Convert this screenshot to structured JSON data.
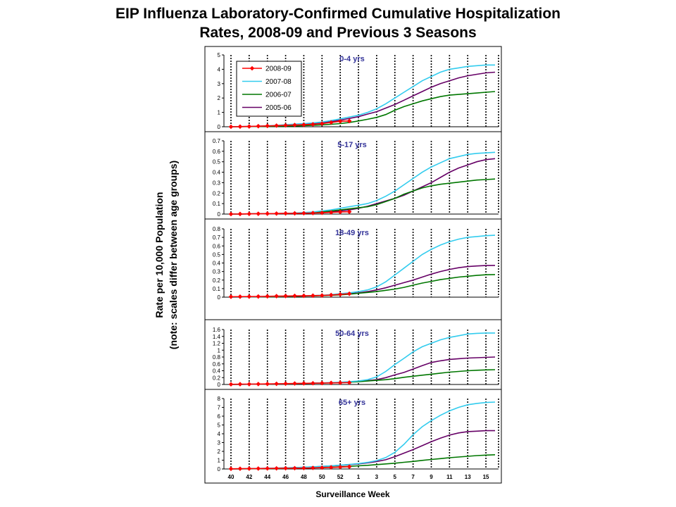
{
  "page": {
    "title_line1": "EIP Influenza Laboratory-Confirmed Cumulative Hospitalization",
    "title_line2": "Rates, 2008-09 and Previous 3 Seasons",
    "ylabel_line1": "Rate per 10,000 Population",
    "ylabel_line2": "(note: scales differ between age groups)",
    "xlabel": "Surveillance Week"
  },
  "colors": {
    "2008-09": "#ff0000",
    "2007-08": "#33ccee",
    "2006-07": "#007700",
    "2005-06": "#660066"
  },
  "chart_data": {
    "type": "line",
    "x_weeks": [
      40,
      41,
      42,
      43,
      44,
      45,
      46,
      47,
      48,
      49,
      50,
      51,
      52,
      53,
      1,
      2,
      3,
      4,
      5,
      6,
      7,
      8,
      9,
      10,
      11,
      12,
      13,
      14,
      15,
      16
    ],
    "x_tick_labels": [
      "40",
      "42",
      "44",
      "46",
      "48",
      "50",
      "52",
      "1",
      "3",
      "5",
      "7",
      "9",
      "11",
      "13",
      "15"
    ],
    "grid": "dotted vertical lines every two weeks",
    "legend_position": "top-left of first panel",
    "legend_entries": [
      "2008-09",
      "2007-08",
      "2006-07",
      "2005-06"
    ],
    "panels": [
      {
        "title": "0-4 yrs",
        "ylim": [
          0,
          5
        ],
        "yticks": [
          "0",
          "1",
          "2",
          "3",
          "4",
          "5"
        ],
        "series": [
          {
            "name": "2008-09",
            "marker": "diamond",
            "values": [
              0,
              0.01,
              0.02,
              0.04,
              0.06,
              0.08,
              0.1,
              0.12,
              0.14,
              0.17,
              0.22,
              0.3,
              0.38,
              0.4
            ]
          },
          {
            "name": "2007-08",
            "values": [
              0,
              0.01,
              0.02,
              0.04,
              0.07,
              0.1,
              0.14,
              0.18,
              0.22,
              0.27,
              0.33,
              0.43,
              0.55,
              0.68,
              0.8,
              1.0,
              1.25,
              1.6,
              2.0,
              2.4,
              2.8,
              3.2,
              3.5,
              3.8,
              4.0,
              4.1,
              4.2,
              4.25,
              4.3,
              4.3
            ]
          },
          {
            "name": "2006-07",
            "values": [
              0,
              0.01,
              0.01,
              0.02,
              0.03,
              0.04,
              0.05,
              0.06,
              0.08,
              0.1,
              0.13,
              0.17,
              0.22,
              0.3,
              0.4,
              0.52,
              0.65,
              0.85,
              1.15,
              1.4,
              1.6,
              1.8,
              1.95,
              2.1,
              2.2,
              2.25,
              2.3,
              2.35,
              2.4,
              2.45
            ]
          },
          {
            "name": "2005-06",
            "values": [
              0,
              0.01,
              0.02,
              0.03,
              0.05,
              0.07,
              0.1,
              0.13,
              0.17,
              0.22,
              0.28,
              0.36,
              0.46,
              0.58,
              0.7,
              0.88,
              1.05,
              1.3,
              1.55,
              1.85,
              2.15,
              2.45,
              2.75,
              3.0,
              3.2,
              3.4,
              3.55,
              3.65,
              3.75,
              3.8
            ]
          }
        ]
      },
      {
        "title": "5-17 yrs",
        "ylim": [
          0,
          0.7
        ],
        "yticks": [
          "0",
          "0.1",
          "0.2",
          "0.3",
          "0.4",
          "0.5",
          "0.6",
          "0.7"
        ],
        "series": [
          {
            "name": "2008-09",
            "marker": "diamond",
            "values": [
              0,
              0.001,
              0.002,
              0.003,
              0.004,
              0.005,
              0.006,
              0.007,
              0.008,
              0.01,
              0.012,
              0.016,
              0.02,
              0.022
            ]
          },
          {
            "name": "2007-08",
            "values": [
              0,
              0.001,
              0.002,
              0.003,
              0.004,
              0.005,
              0.007,
              0.01,
              0.015,
              0.02,
              0.03,
              0.04,
              0.055,
              0.07,
              0.085,
              0.1,
              0.13,
              0.17,
              0.22,
              0.28,
              0.34,
              0.4,
              0.45,
              0.49,
              0.53,
              0.55,
              0.57,
              0.58,
              0.585,
              0.59
            ]
          },
          {
            "name": "2006-07",
            "values": [
              0,
              0.001,
              0.002,
              0.003,
              0.004,
              0.005,
              0.007,
              0.009,
              0.012,
              0.016,
              0.022,
              0.03,
              0.04,
              0.05,
              0.06,
              0.07,
              0.09,
              0.12,
              0.15,
              0.19,
              0.22,
              0.25,
              0.27,
              0.285,
              0.295,
              0.305,
              0.315,
              0.325,
              0.33,
              0.335
            ]
          },
          {
            "name": "2005-06",
            "values": [
              0,
              0.001,
              0.002,
              0.003,
              0.004,
              0.005,
              0.006,
              0.008,
              0.01,
              0.013,
              0.017,
              0.022,
              0.03,
              0.04,
              0.055,
              0.075,
              0.1,
              0.125,
              0.15,
              0.18,
              0.22,
              0.26,
              0.3,
              0.35,
              0.4,
              0.44,
              0.47,
              0.5,
              0.52,
              0.53
            ]
          }
        ]
      },
      {
        "title": "18-49 yrs",
        "ylim": [
          0,
          0.8
        ],
        "yticks": [
          "0",
          "0.1",
          "0.2",
          "0.3",
          "0.4",
          "0.5",
          "0.6",
          "0.7",
          "0.8"
        ],
        "series": [
          {
            "name": "2008-09",
            "marker": "diamond",
            "values": [
              0.005,
              0.006,
              0.007,
              0.008,
              0.01,
              0.012,
              0.013,
              0.015,
              0.016,
              0.018,
              0.02,
              0.025,
              0.032,
              0.04
            ]
          },
          {
            "name": "2007-08",
            "values": [
              0,
              0.002,
              0.004,
              0.006,
              0.008,
              0.01,
              0.012,
              0.014,
              0.016,
              0.018,
              0.022,
              0.03,
              0.04,
              0.05,
              0.065,
              0.085,
              0.12,
              0.18,
              0.26,
              0.34,
              0.42,
              0.5,
              0.56,
              0.61,
              0.65,
              0.68,
              0.7,
              0.71,
              0.72,
              0.725
            ]
          },
          {
            "name": "2006-07",
            "values": [
              0,
              0.002,
              0.003,
              0.004,
              0.005,
              0.006,
              0.008,
              0.01,
              0.012,
              0.015,
              0.018,
              0.022,
              0.027,
              0.035,
              0.045,
              0.055,
              0.065,
              0.08,
              0.095,
              0.115,
              0.14,
              0.165,
              0.185,
              0.205,
              0.22,
              0.235,
              0.245,
              0.255,
              0.262,
              0.265
            ]
          },
          {
            "name": "2005-06",
            "values": [
              0,
              0.002,
              0.004,
              0.005,
              0.006,
              0.008,
              0.01,
              0.012,
              0.014,
              0.017,
              0.02,
              0.025,
              0.032,
              0.04,
              0.05,
              0.065,
              0.085,
              0.11,
              0.14,
              0.17,
              0.2,
              0.235,
              0.27,
              0.3,
              0.325,
              0.345,
              0.358,
              0.365,
              0.37,
              0.372
            ]
          }
        ]
      },
      {
        "title": "50-64 yrs",
        "ylim": [
          0,
          1.6
        ],
        "yticks": [
          "0",
          "0.2",
          "0.4",
          "0.6",
          "0.8",
          "1",
          "1.2",
          "1.4",
          "1.6"
        ],
        "series": [
          {
            "name": "2008-09",
            "marker": "diamond",
            "values": [
              0.005,
              0.008,
              0.01,
              0.013,
              0.016,
              0.02,
              0.024,
              0.028,
              0.032,
              0.036,
              0.04,
              0.045,
              0.05,
              0.055
            ]
          },
          {
            "name": "2007-08",
            "values": [
              0,
              0.003,
              0.006,
              0.01,
              0.014,
              0.018,
              0.022,
              0.027,
              0.032,
              0.038,
              0.045,
              0.055,
              0.065,
              0.08,
              0.1,
              0.14,
              0.22,
              0.38,
              0.58,
              0.76,
              0.95,
              1.1,
              1.2,
              1.3,
              1.37,
              1.42,
              1.47,
              1.49,
              1.5,
              1.5
            ]
          },
          {
            "name": "2006-07",
            "values": [
              0,
              0.003,
              0.006,
              0.009,
              0.012,
              0.015,
              0.019,
              0.023,
              0.028,
              0.034,
              0.04,
              0.048,
              0.057,
              0.068,
              0.08,
              0.1,
              0.12,
              0.14,
              0.17,
              0.21,
              0.24,
              0.27,
              0.3,
              0.33,
              0.36,
              0.38,
              0.4,
              0.415,
              0.425,
              0.43
            ]
          },
          {
            "name": "2005-06",
            "values": [
              0,
              0.003,
              0.006,
              0.009,
              0.012,
              0.016,
              0.02,
              0.025,
              0.03,
              0.036,
              0.043,
              0.052,
              0.062,
              0.075,
              0.09,
              0.11,
              0.14,
              0.2,
              0.28,
              0.35,
              0.45,
              0.55,
              0.64,
              0.69,
              0.73,
              0.75,
              0.77,
              0.78,
              0.79,
              0.8
            ]
          }
        ]
      },
      {
        "title": "65+ yrs",
        "ylim": [
          0,
          8
        ],
        "yticks": [
          "0",
          "1",
          "2",
          "3",
          "4",
          "5",
          "6",
          "7",
          "8"
        ],
        "series": [
          {
            "name": "2008-09",
            "marker": "diamond",
            "values": [
              0.02,
              0.03,
              0.04,
              0.05,
              0.06,
              0.07,
              0.08,
              0.09,
              0.1,
              0.12,
              0.15,
              0.18,
              0.22,
              0.26
            ]
          },
          {
            "name": "2007-08",
            "values": [
              0,
              0.02,
              0.04,
              0.06,
              0.08,
              0.1,
              0.13,
              0.16,
              0.2,
              0.25,
              0.3,
              0.36,
              0.43,
              0.52,
              0.62,
              0.75,
              0.95,
              1.3,
              1.9,
              2.8,
              3.9,
              4.8,
              5.5,
              6.1,
              6.6,
              7.0,
              7.3,
              7.45,
              7.55,
              7.6
            ]
          },
          {
            "name": "2006-07",
            "values": [
              0,
              0.01,
              0.02,
              0.03,
              0.04,
              0.05,
              0.07,
              0.09,
              0.11,
              0.14,
              0.17,
              0.21,
              0.25,
              0.3,
              0.36,
              0.42,
              0.5,
              0.58,
              0.66,
              0.76,
              0.86,
              0.98,
              1.08,
              1.18,
              1.28,
              1.36,
              1.44,
              1.52,
              1.58,
              1.62
            ]
          },
          {
            "name": "2005-06",
            "values": [
              0,
              0.02,
              0.04,
              0.06,
              0.08,
              0.1,
              0.13,
              0.16,
              0.2,
              0.24,
              0.29,
              0.35,
              0.42,
              0.5,
              0.58,
              0.7,
              0.85,
              1.05,
              1.4,
              1.8,
              2.2,
              2.65,
              3.1,
              3.5,
              3.85,
              4.1,
              4.25,
              4.3,
              4.35,
              4.35
            ]
          }
        ]
      }
    ]
  }
}
